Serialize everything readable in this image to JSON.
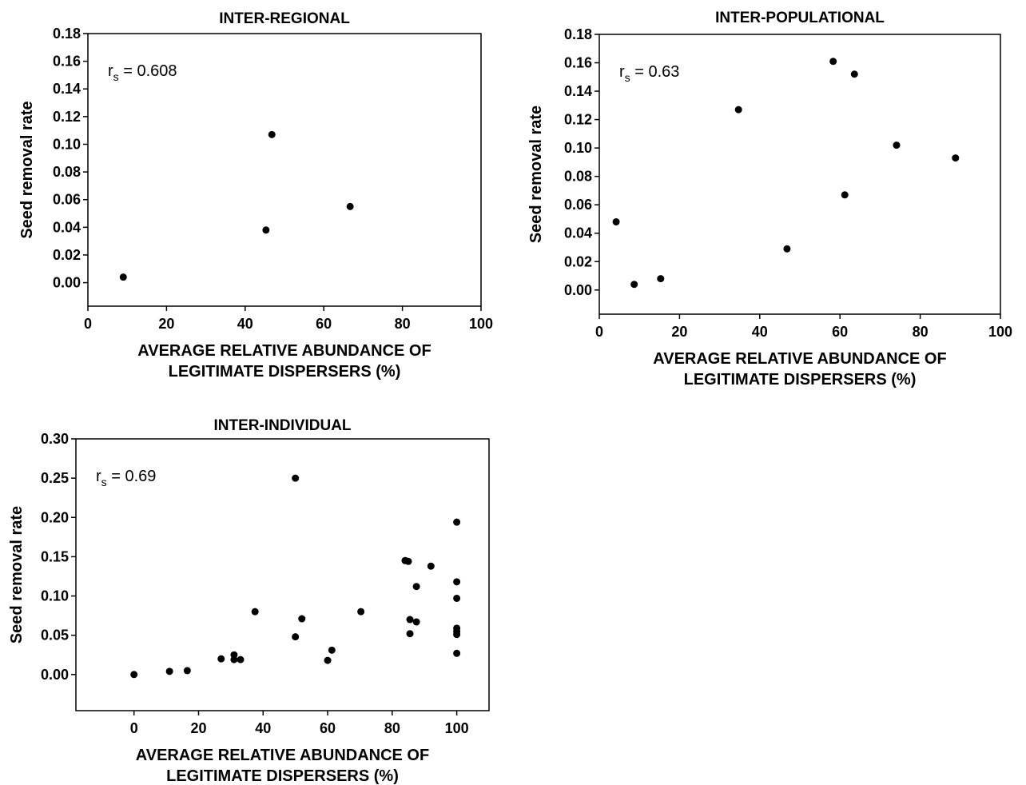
{
  "chart_data": [
    {
      "type": "scatter",
      "title": "INTER-REGIONAL",
      "xlabel": [
        "AVERAGE RELATIVE ABUNDANCE OF",
        "LEGITIMATE DISPERSERS (%)"
      ],
      "ylabel": "Seed removal rate",
      "annotation": {
        "main": "r",
        "sub": "s",
        "rest": " = 0.608"
      },
      "xlim": [
        0,
        100
      ],
      "ylim": [
        -0.017,
        0.18
      ],
      "xticks": [
        0,
        20,
        40,
        60,
        80,
        100
      ],
      "xtick_labels": [
        "0",
        "20",
        "40",
        "60",
        "80",
        "100"
      ],
      "yticks": [
        0,
        0.02,
        0.04,
        0.06,
        0.08,
        0.1,
        0.12,
        0.14,
        0.16,
        0.18
      ],
      "ytick_labels": [
        "0.00",
        "0.02",
        "0.04",
        "0.06",
        "0.08",
        "0.10",
        "0.12",
        "0.14",
        "0.16",
        "0.18"
      ],
      "grid": false,
      "legend": false,
      "color": "#000000",
      "points": [
        {
          "x": 9,
          "y": 0.004
        },
        {
          "x": 45.3,
          "y": 0.038
        },
        {
          "x": 46.8,
          "y": 0.107
        },
        {
          "x": 66.7,
          "y": 0.055
        }
      ]
    },
    {
      "type": "scatter",
      "title": "INTER-POPULATIONAL",
      "xlabel": [
        "AVERAGE RELATIVE ABUNDANCE OF",
        "LEGITIMATE DISPERSERS (%)"
      ],
      "ylabel": "Seed removal rate",
      "annotation": {
        "main": "r",
        "sub": "s",
        "rest": " = 0.63"
      },
      "xlim": [
        0,
        100
      ],
      "ylim": [
        -0.017,
        0.18
      ],
      "xticks": [
        0,
        20,
        40,
        60,
        80,
        100
      ],
      "xtick_labels": [
        "0",
        "20",
        "40",
        "60",
        "80",
        "100"
      ],
      "yticks": [
        0,
        0.02,
        0.04,
        0.06,
        0.08,
        0.1,
        0.12,
        0.14,
        0.16,
        0.18
      ],
      "ytick_labels": [
        "0.00",
        "0.02",
        "0.04",
        "0.06",
        "0.08",
        "0.10",
        "0.12",
        "0.14",
        "0.16",
        "0.18"
      ],
      "grid": false,
      "legend": false,
      "color": "#000000",
      "points": [
        {
          "x": 4.2,
          "y": 0.048
        },
        {
          "x": 8.7,
          "y": 0.004
        },
        {
          "x": 15.3,
          "y": 0.008
        },
        {
          "x": 34.7,
          "y": 0.127
        },
        {
          "x": 46.8,
          "y": 0.029
        },
        {
          "x": 58.3,
          "y": 0.161
        },
        {
          "x": 61.2,
          "y": 0.067
        },
        {
          "x": 63.6,
          "y": 0.152
        },
        {
          "x": 74.1,
          "y": 0.102
        },
        {
          "x": 88.8,
          "y": 0.093
        }
      ]
    },
    {
      "type": "scatter",
      "title": "INTER-INDIVIDUAL",
      "xlabel": [
        "AVERAGE RELATIVE ABUNDANCE OF",
        "LEGITIMATE DISPERSERS (%)"
      ],
      "ylabel": "Seed removal rate",
      "annotation": {
        "main": "r",
        "sub": "s",
        "rest": " = 0.69"
      },
      "xlim": [
        -18,
        110
      ],
      "ylim": [
        -0.046,
        0.3
      ],
      "xticks": [
        0,
        20,
        40,
        60,
        80,
        100
      ],
      "xtick_labels": [
        "0",
        "20",
        "40",
        "60",
        "80",
        "100"
      ],
      "yticks": [
        0,
        0.05,
        0.1,
        0.15,
        0.2,
        0.25,
        0.3
      ],
      "ytick_labels": [
        "0.00",
        "0.05",
        "0.10",
        "0.15",
        "0.20",
        "0.25",
        "0.30"
      ],
      "grid": false,
      "legend": false,
      "color": "#000000",
      "points": [
        {
          "x": 0,
          "y": 0.0
        },
        {
          "x": 11,
          "y": 0.004
        },
        {
          "x": 16.5,
          "y": 0.005
        },
        {
          "x": 27,
          "y": 0.02
        },
        {
          "x": 31,
          "y": 0.025
        },
        {
          "x": 31,
          "y": 0.019
        },
        {
          "x": 33,
          "y": 0.019
        },
        {
          "x": 37.5,
          "y": 0.08
        },
        {
          "x": 50,
          "y": 0.25
        },
        {
          "x": 50,
          "y": 0.048
        },
        {
          "x": 52,
          "y": 0.071
        },
        {
          "x": 60,
          "y": 0.018
        },
        {
          "x": 61.3,
          "y": 0.031
        },
        {
          "x": 70.3,
          "y": 0.08
        },
        {
          "x": 84,
          "y": 0.145
        },
        {
          "x": 85,
          "y": 0.144
        },
        {
          "x": 85.5,
          "y": 0.07
        },
        {
          "x": 85.5,
          "y": 0.052
        },
        {
          "x": 87.5,
          "y": 0.112
        },
        {
          "x": 87.5,
          "y": 0.067
        },
        {
          "x": 92,
          "y": 0.138
        },
        {
          "x": 100,
          "y": 0.194
        },
        {
          "x": 100,
          "y": 0.118
        },
        {
          "x": 100,
          "y": 0.097
        },
        {
          "x": 100,
          "y": 0.059
        },
        {
          "x": 100,
          "y": 0.055
        },
        {
          "x": 100,
          "y": 0.051
        },
        {
          "x": 100,
          "y": 0.027
        }
      ]
    }
  ]
}
